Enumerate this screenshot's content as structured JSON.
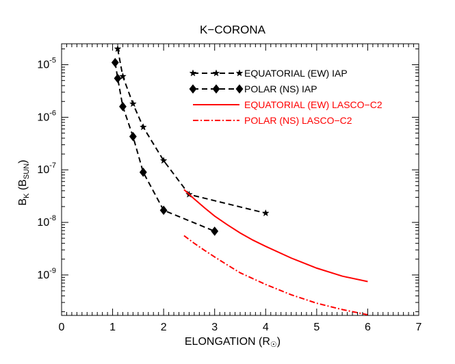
{
  "chart_data": {
    "type": "line",
    "title": "K−CORONA",
    "xlabel": "ELONGATION (R",
    "xlabel_sub": "☉",
    "xlabel_close": ")",
    "ylabel_main": "B",
    "ylabel_sub_k": "K",
    "ylabel_paren_open": " (B",
    "ylabel_sub_sun": "SUN",
    "ylabel_paren_close": ")",
    "xlim": [
      0,
      7
    ],
    "ylim": [
      1.7e-10,
      2.5e-05
    ],
    "yscale": "log",
    "x_ticks": [
      "0",
      "1",
      "2",
      "3",
      "4",
      "5",
      "6",
      "7"
    ],
    "y_tick_base": "10",
    "y_ticks": [
      "-5",
      "-6",
      "-7",
      "-8",
      "-9"
    ],
    "y_tick_exponents": [
      -5,
      -6,
      -7,
      -8,
      -9
    ],
    "legend_position": "top-right",
    "series": [
      {
        "name": "EQUATORIAL (EW) IAP",
        "style": "dashed",
        "marker": "star",
        "color": "#000000",
        "x": [
          1.1,
          1.2,
          1.4,
          1.6,
          2.0,
          2.5,
          4.0
        ],
        "y": [
          2e-05,
          6e-06,
          1.8e-06,
          6.5e-07,
          1.5e-07,
          3.4e-08,
          1.5e-08
        ]
      },
      {
        "name": "POLAR (NS) IAP",
        "style": "dashed",
        "marker": "diamond",
        "color": "#000000",
        "x": [
          1.05,
          1.1,
          1.2,
          1.4,
          1.6,
          2.0,
          3.0
        ],
        "y": [
          1.1e-05,
          5.5e-06,
          1.6e-06,
          4.3e-07,
          9e-08,
          1.7e-08,
          6.8e-09
        ]
      },
      {
        "name": "EQUATORIAL (EW) LASCO−C2",
        "style": "solid",
        "marker": "none",
        "color": "#ff0000",
        "x": [
          2.4,
          2.6,
          2.8,
          3.0,
          3.25,
          3.5,
          3.75,
          4.0,
          4.5,
          5.0,
          5.5,
          6.0
        ],
        "y": [
          4.2e-08,
          2.8e-08,
          1.9e-08,
          1.32e-08,
          9e-09,
          6.3e-09,
          4.6e-09,
          3.5e-09,
          2.1e-09,
          1.35e-09,
          9.5e-10,
          7.5e-10
        ]
      },
      {
        "name": "POLAR (NS) LASCO−C2",
        "style": "dashdot",
        "marker": "none",
        "color": "#ff0000",
        "x": [
          2.4,
          2.6,
          2.8,
          3.0,
          3.25,
          3.5,
          4.0,
          4.5,
          5.0,
          5.5,
          6.0
        ],
        "y": [
          5.6e-09,
          4e-09,
          2.95e-09,
          2.2e-09,
          1.55e-09,
          1.1e-09,
          6.6e-10,
          4.2e-10,
          2.9e-10,
          2.2e-10,
          1.75e-10
        ]
      }
    ]
  }
}
